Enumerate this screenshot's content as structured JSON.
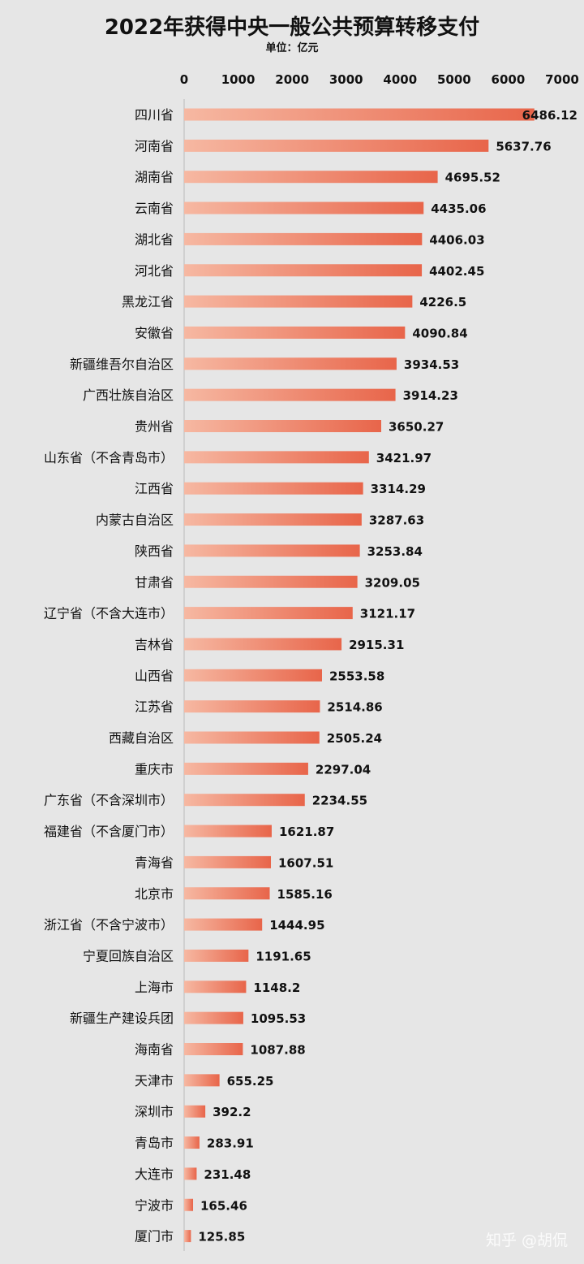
{
  "chart_data": {
    "type": "bar",
    "orientation": "horizontal",
    "title": "2022年获得中央一般公共预算转移支付",
    "subtitle": "单位：亿元",
    "xlim": [
      0,
      7000
    ],
    "xticks": [
      0,
      1000,
      2000,
      3000,
      4000,
      5000,
      6000,
      7000
    ],
    "grid": false,
    "categories": [
      "四川省",
      "河南省",
      "湖南省",
      "云南省",
      "湖北省",
      "河北省",
      "黑龙江省",
      "安徽省",
      "新疆维吾尔自治区",
      "广西壮族自治区",
      "贵州省",
      "山东省（不含青岛市）",
      "江西省",
      "内蒙古自治区",
      "陕西省",
      "甘肃省",
      "辽宁省（不含大连市）",
      "吉林省",
      "山西省",
      "江苏省",
      "西藏自治区",
      "重庆市",
      "广东省（不含深圳市）",
      "福建省（不含厦门市）",
      "青海省",
      "北京市",
      "浙江省（不含宁波市）",
      "宁夏回族自治区",
      "上海市",
      "新疆生产建设兵团",
      "海南省",
      "天津市",
      "深圳市",
      "青岛市",
      "大连市",
      "宁波市",
      "厦门市"
    ],
    "values": [
      6486.12,
      5637.76,
      4695.52,
      4435.06,
      4406.03,
      4402.45,
      4226.5,
      4090.84,
      3934.53,
      3914.23,
      3650.27,
      3421.97,
      3314.29,
      3287.63,
      3253.84,
      3209.05,
      3121.17,
      2915.31,
      2553.58,
      2514.86,
      2505.24,
      2297.04,
      2234.55,
      1621.87,
      1607.51,
      1585.16,
      1444.95,
      1191.65,
      1148.2,
      1095.53,
      1087.88,
      655.25,
      392.2,
      283.91,
      231.48,
      165.46,
      125.85
    ],
    "labels": [
      "6486.12",
      "5637.76",
      "4695.52",
      "4435.06",
      "4406.03",
      "4402.45",
      "4226.5",
      "4090.84",
      "3934.53",
      "3914.23",
      "3650.27",
      "3421.97",
      "3314.29",
      "3287.63",
      "3253.84",
      "3209.05",
      "3121.17",
      "2915.31",
      "2553.58",
      "2514.86",
      "2505.24",
      "2297.04",
      "2234.55",
      "1621.87",
      "1607.51",
      "1585.16",
      "1444.95",
      "1191.65",
      "1148.2",
      "1095.53",
      "1087.88",
      "655.25",
      "392.2",
      "283.91",
      "231.48",
      "165.46",
      "125.85"
    ],
    "colors": {
      "bar_light": "#f6b8a2",
      "bar_dark": "#e8654a",
      "background": "#e6e6e6",
      "axis": "#bbbbbb"
    }
  },
  "watermark": "知乎 @胡侃"
}
